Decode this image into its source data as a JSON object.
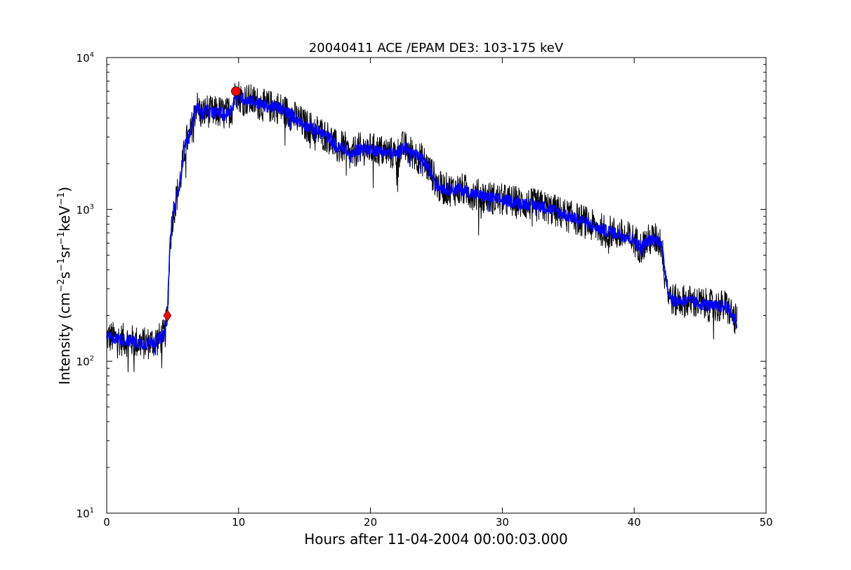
{
  "chart_data": {
    "type": "line",
    "title": "20040411 ACE /EPAM DE3: 103-175 keV",
    "xlabel": "Hours after 11-04-2004 00:00:03.000",
    "ylabel": "Intensity (cm⁻²s⁻¹sr⁻¹keV⁻¹)",
    "ylabel_parts": [
      "Intensity (cm",
      "−2",
      "s",
      "−1",
      "sr",
      "−1",
      "keV",
      "−1",
      ")"
    ],
    "xlim": [
      0,
      50
    ],
    "ylim": [
      10,
      10000
    ],
    "yscale": "log",
    "grid": false,
    "legend": "none",
    "x_ticks": [
      {
        "value": 0,
        "label": "0"
      },
      {
        "value": 10,
        "label": "10"
      },
      {
        "value": 20,
        "label": "20"
      },
      {
        "value": 30,
        "label": "30"
      },
      {
        "value": 40,
        "label": "40"
      },
      {
        "value": 50,
        "label": "50"
      }
    ],
    "y_ticks": [
      {
        "value": 10,
        "base": "10",
        "exp": "1"
      },
      {
        "value": 100,
        "base": "10",
        "exp": "2"
      },
      {
        "value": 1000,
        "base": "10",
        "exp": "3"
      },
      {
        "value": 10000,
        "base": "10",
        "exp": "4"
      }
    ],
    "series": [
      {
        "style": "raw",
        "color": "#000000",
        "noise_log10": 0.11,
        "x": [
          0,
          1,
          2,
          3,
          4,
          4.4,
          4.6,
          4.8,
          5.0,
          5.3,
          5.6,
          6.0,
          6.3,
          6.8,
          7.2,
          7.6,
          8.0,
          8.5,
          9.0,
          9.5,
          9.8,
          10.2,
          11,
          12,
          13,
          14,
          15,
          16,
          17,
          17.5,
          18,
          18.5,
          19,
          20,
          21,
          22,
          22.5,
          23,
          24,
          24.7,
          25.2,
          26,
          27,
          28,
          29,
          30,
          31,
          32,
          33,
          34,
          35,
          36,
          37,
          38,
          39,
          40,
          40.5,
          41,
          41.5,
          42,
          42.3,
          42.6,
          43,
          44,
          45,
          46,
          47,
          47.8
        ],
        "y": [
          145,
          140,
          135,
          130,
          140,
          150,
          200,
          600,
          900,
          1200,
          1600,
          2800,
          3000,
          4900,
          4200,
          4500,
          4300,
          4400,
          4200,
          4600,
          6000,
          5400,
          5200,
          4800,
          4700,
          4200,
          3600,
          3300,
          2900,
          2500,
          2600,
          2200,
          2500,
          2500,
          2400,
          2300,
          2600,
          2400,
          2100,
          1700,
          1400,
          1350,
          1350,
          1250,
          1200,
          1150,
          1120,
          1080,
          1050,
          980,
          900,
          850,
          760,
          720,
          680,
          630,
          560,
          620,
          640,
          620,
          420,
          280,
          250,
          250,
          240,
          230,
          230,
          180
        ]
      },
      {
        "style": "smoothed",
        "color": "#0000ff",
        "noise_log10": 0.04,
        "x": [
          0,
          1,
          2,
          3,
          4,
          4.4,
          4.6,
          4.8,
          5.0,
          5.3,
          5.6,
          6.0,
          6.3,
          6.8,
          7.2,
          7.6,
          8.0,
          8.5,
          9.0,
          9.5,
          9.8,
          10.2,
          11,
          12,
          13,
          14,
          15,
          16,
          17,
          17.5,
          18,
          18.5,
          19,
          20,
          21,
          22,
          22.5,
          23,
          24,
          24.7,
          25.2,
          26,
          27,
          28,
          29,
          30,
          31,
          32,
          33,
          34,
          35,
          36,
          37,
          38,
          39,
          40,
          40.5,
          41,
          41.5,
          42,
          42.3,
          42.6,
          43,
          44,
          45,
          46,
          47,
          47.8
        ],
        "y": [
          145,
          140,
          135,
          130,
          140,
          150,
          200,
          600,
          900,
          1200,
          1600,
          2800,
          3000,
          4900,
          4200,
          4500,
          4300,
          4400,
          4200,
          4600,
          6000,
          5400,
          5200,
          4800,
          4700,
          4200,
          3600,
          3300,
          2900,
          2500,
          2600,
          2200,
          2500,
          2500,
          2400,
          2300,
          2600,
          2400,
          2100,
          1700,
          1400,
          1350,
          1350,
          1250,
          1200,
          1150,
          1120,
          1080,
          1050,
          980,
          900,
          850,
          760,
          720,
          680,
          630,
          560,
          620,
          640,
          620,
          420,
          280,
          250,
          250,
          240,
          230,
          230,
          180
        ]
      }
    ],
    "markers": [
      {
        "shape": "diamond",
        "x": 4.6,
        "y": 200,
        "color": "#ff0000"
      },
      {
        "shape": "circle",
        "x": 9.8,
        "y": 6000,
        "color": "#ff0000"
      }
    ]
  }
}
